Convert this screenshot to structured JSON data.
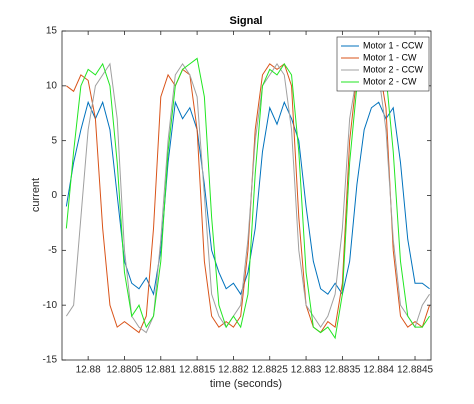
{
  "chart_data": {
    "type": "line",
    "title": "Signal",
    "x_label": "time (seconds)",
    "y_label": "current",
    "x": [
      12.8797,
      12.8798,
      12.8799,
      12.88,
      12.8801,
      12.8802,
      12.8803,
      12.8804,
      12.8805,
      12.8806,
      12.8807,
      12.8808,
      12.8809,
      12.881,
      12.8811,
      12.8812,
      12.8813,
      12.8814,
      12.8815,
      12.8816,
      12.8817,
      12.8818,
      12.8819,
      12.882,
      12.8821,
      12.8822,
      12.8823,
      12.8824,
      12.8825,
      12.8826,
      12.8827,
      12.8828,
      12.8829,
      12.883,
      12.8831,
      12.8832,
      12.8833,
      12.8834,
      12.8835,
      12.8836,
      12.8837,
      12.8838,
      12.8839,
      12.884,
      12.8841,
      12.8842,
      12.8843,
      12.8844,
      12.8845,
      12.8846,
      12.8847
    ],
    "series": [
      {
        "name": "Motor 1 - CCW",
        "color": "#0072bd",
        "values": [
          -1,
          3,
          6,
          8.5,
          7,
          8.5,
          6,
          0,
          -6,
          -8,
          -8.5,
          -7.5,
          -9,
          -5,
          3,
          8.5,
          7,
          8,
          6,
          1,
          -5,
          -7,
          -8.5,
          -8,
          -9,
          -7,
          -3,
          4,
          8,
          6.5,
          8.5,
          7,
          5,
          -1,
          -6,
          -8.5,
          -9,
          -8,
          -9,
          -6,
          1,
          6,
          8,
          8.5,
          7,
          8,
          3,
          -4,
          -8,
          -8,
          -8.5
        ]
      },
      {
        "name": "Motor 1 - CW",
        "color": "#d95319",
        "values": [
          10,
          9.5,
          11,
          10.5,
          7,
          -3,
          -10,
          -12,
          -11.5,
          -12,
          -12.5,
          -11,
          -3,
          9,
          11,
          10,
          11.5,
          11,
          6,
          -6,
          -11,
          -12,
          -11.5,
          -12,
          -11,
          -5,
          6,
          11,
          12,
          11.5,
          12,
          10,
          -2,
          -10,
          -12,
          -12.5,
          -11.5,
          -12,
          -8,
          5,
          11,
          12,
          11,
          12,
          8,
          -5,
          -11,
          -12,
          -11.5,
          -12,
          -10
        ]
      },
      {
        "name": "Motor 2 - CCW",
        "color": "#a0a0a0",
        "values": [
          -11,
          -10,
          -2,
          6,
          10,
          11,
          12,
          7,
          -5,
          -11,
          -12,
          -12.5,
          -11,
          -4,
          5,
          11,
          12,
          11,
          9,
          0,
          -9,
          -11,
          -12,
          -11,
          -10,
          -4,
          5,
          10,
          11,
          12,
          11,
          6,
          -5,
          -10,
          -11,
          -12,
          -11,
          -9,
          -3,
          7,
          11,
          12,
          10,
          11,
          6,
          -4,
          -10,
          -11,
          -12,
          -10,
          -9
        ]
      },
      {
        "name": "Motor 2 - CW",
        "color": "#22e622",
        "values": [
          -3,
          4,
          10,
          11.5,
          11,
          12,
          10,
          3,
          -7,
          -11,
          -10,
          -12,
          -11,
          -6,
          4,
          10,
          11.5,
          12,
          12.5,
          9,
          -2,
          -10,
          -12,
          -11,
          -12,
          -9,
          2,
          10,
          11.5,
          11,
          12,
          11,
          4,
          -7,
          -12,
          -12.5,
          -12,
          -13,
          -9,
          3,
          10,
          12,
          11.5,
          12,
          11,
          4,
          -6,
          -11,
          -12,
          -12,
          -11
        ]
      }
    ],
    "xlim": [
      12.87964,
      12.88472
    ],
    "xticks": [
      12.88,
      12.8805,
      12.881,
      12.8815,
      12.882,
      12.8825,
      12.883,
      12.8835,
      12.884,
      12.8845
    ],
    "ylim": [
      -15,
      15
    ],
    "yticks": [
      -15,
      -10,
      -5,
      0,
      5,
      10,
      15
    ],
    "legend": "upper right"
  }
}
